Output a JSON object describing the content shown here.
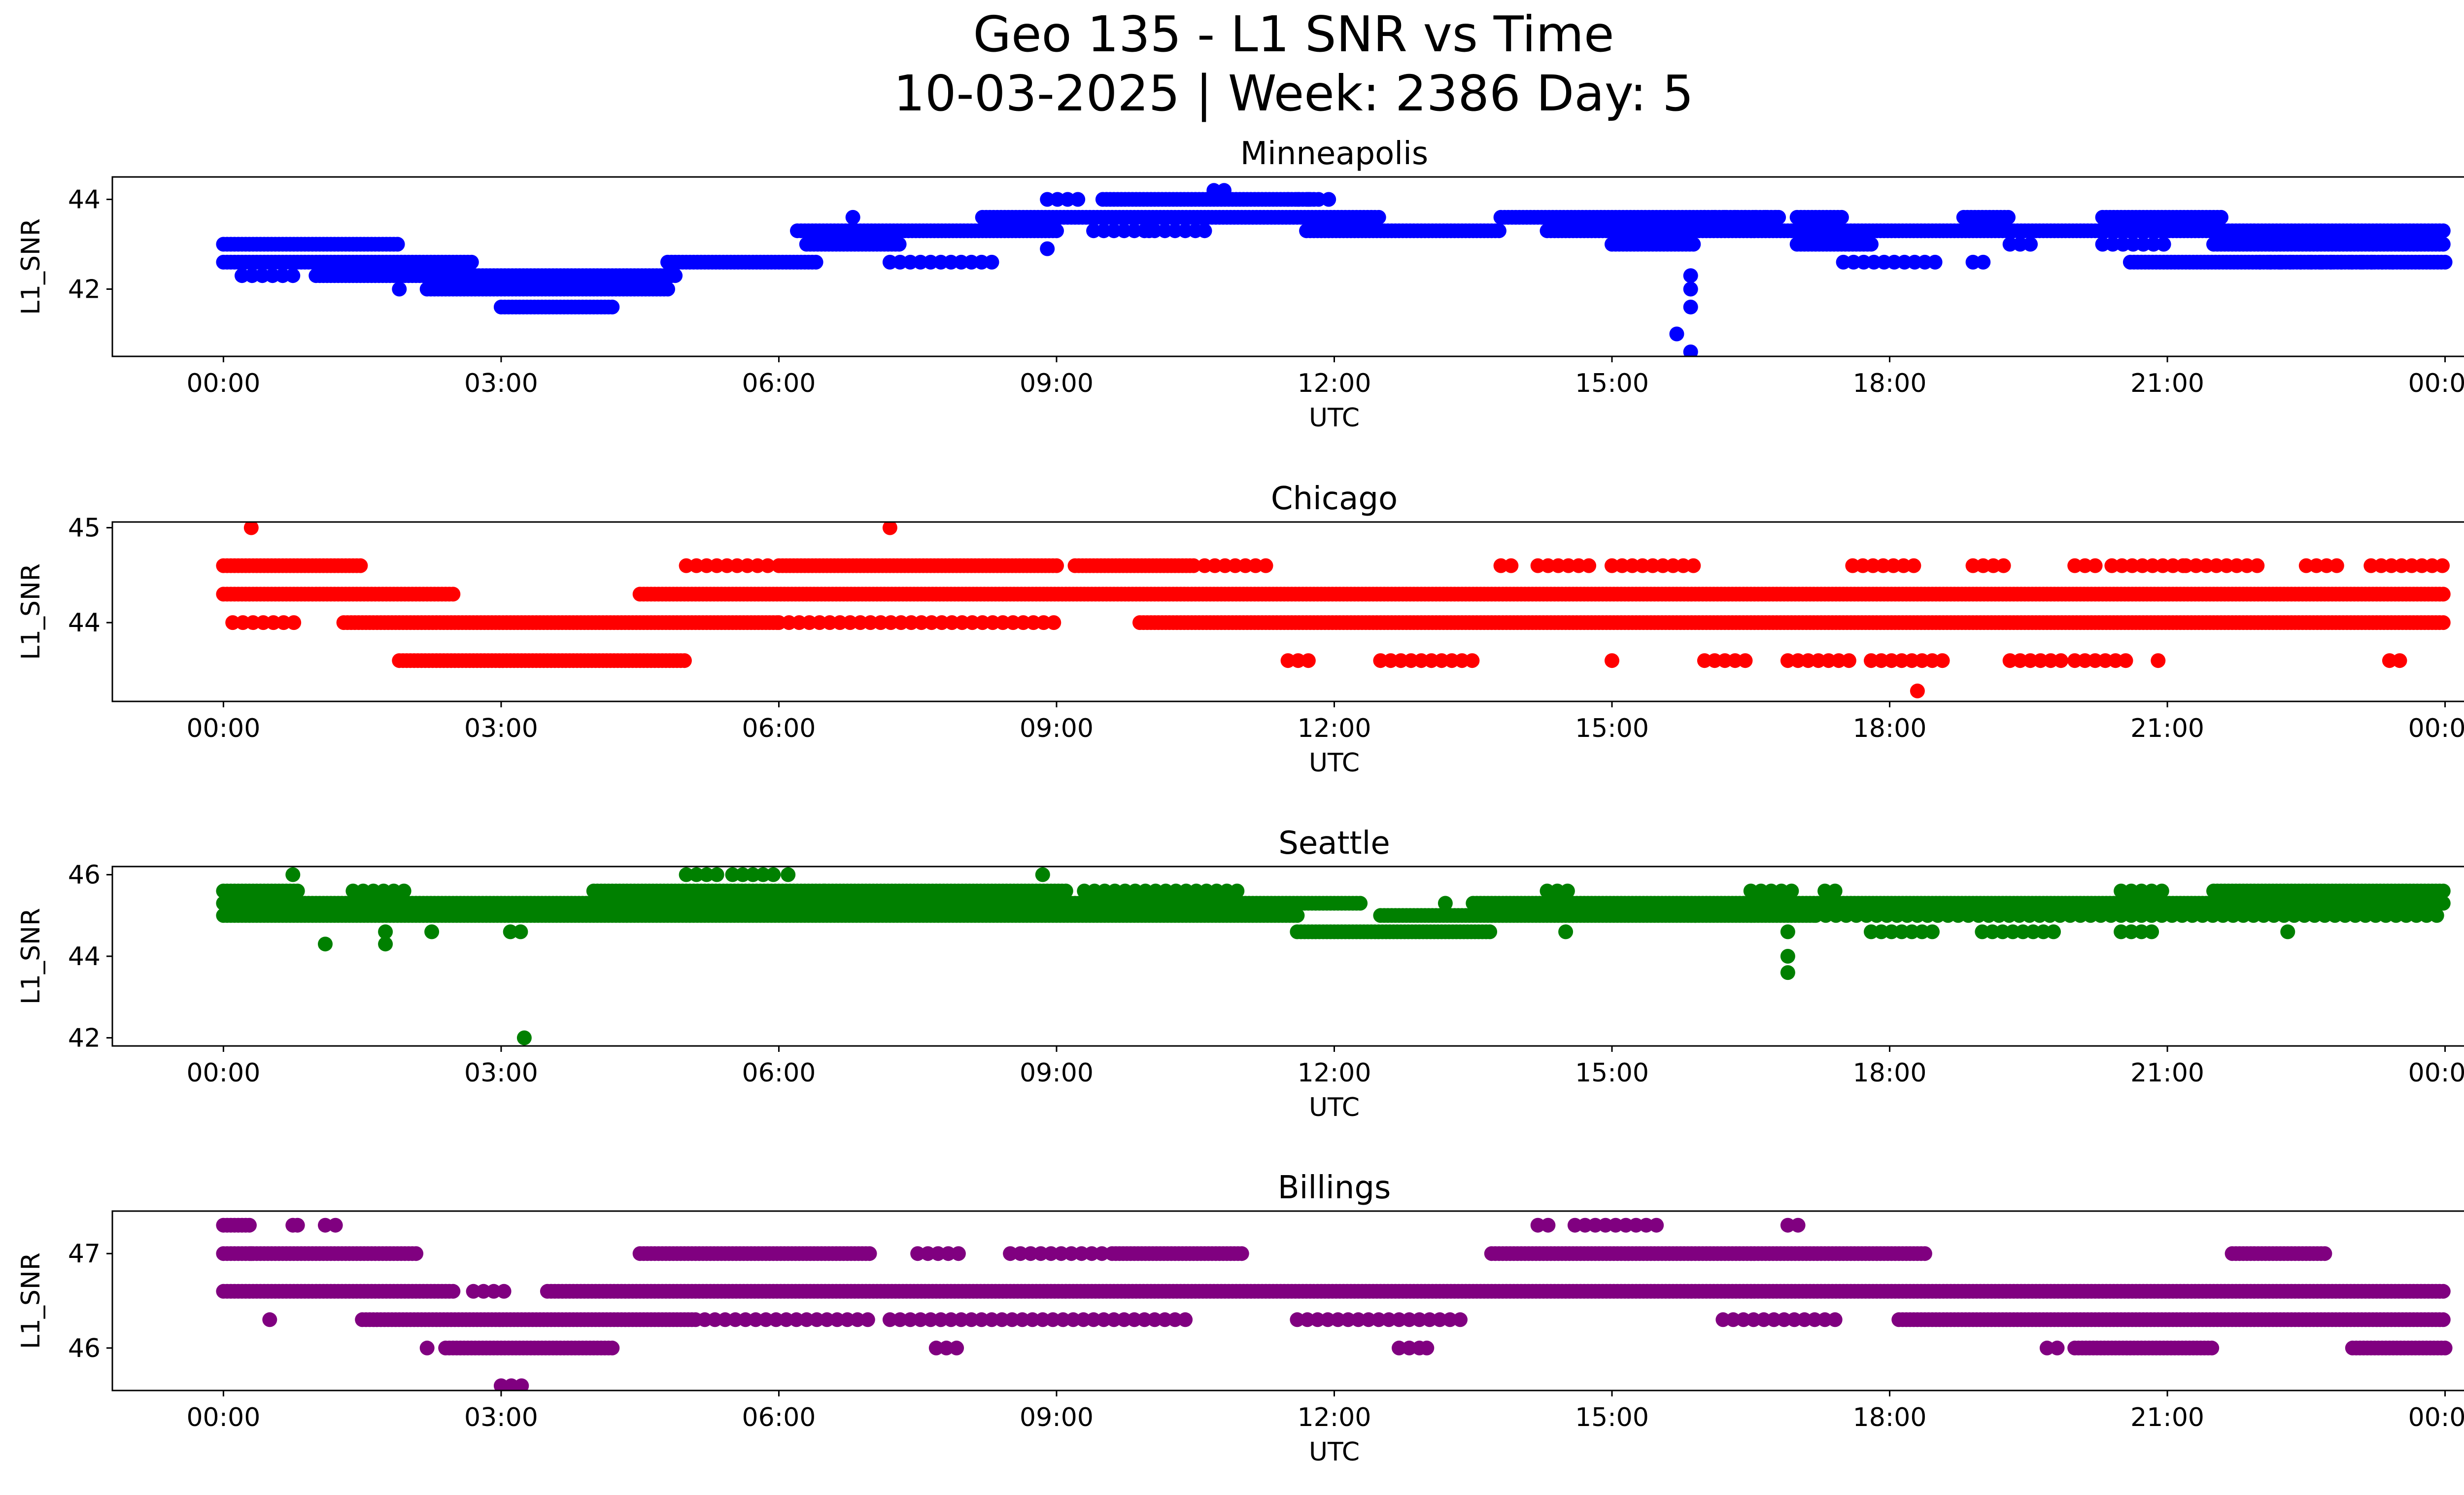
{
  "chart_data": {
    "type": "scatter",
    "title_line1": "Geo 135 - L1 SNR vs Time",
    "title_line2": "10-03-2025 | Week: 2386 Day: 5",
    "xlabel": "UTC",
    "ylabel": "L1_SNR",
    "x_unit": "hours UTC",
    "x_ticks": [
      "00:00",
      "03:00",
      "06:00",
      "09:00",
      "12:00",
      "15:00",
      "18:00",
      "21:00",
      "00:00"
    ],
    "x_tick_values": [
      0,
      3,
      6,
      9,
      12,
      15,
      18,
      21,
      24
    ],
    "xlim": [
      -1.2,
      25.2
    ],
    "panels": [
      {
        "name": "Minneapolis",
        "color": "#0000ff",
        "ylim": [
          40.5,
          44.5
        ],
        "y_ticks": [
          42,
          44
        ],
        "levels": [
          {
            "y": 43.0,
            "segments": [
              [
                0.0,
                1.9
              ],
              [
                6.3,
                7.3
              ],
              [
                15.0,
                15.9
              ],
              [
                17.0,
                17.8
              ],
              [
                21.5,
                24.0
              ]
            ],
            "sparse": [
              [
                19.3,
                19.6
              ],
              [
                20.3,
                21.0
              ]
            ]
          },
          {
            "y": 42.6,
            "segments": [
              [
                0.0,
                2.7
              ],
              [
                4.8,
                6.4
              ],
              [
                20.6,
                24.0
              ]
            ],
            "sparse": [
              [
                7.2,
                8.3
              ],
              [
                17.5,
                18.5
              ],
              [
                18.9,
                19.1
              ],
              [
                22.0,
                23.5
              ]
            ]
          },
          {
            "y": 42.3,
            "segments": [
              [
                1.0,
                4.9
              ]
            ],
            "sparse": [
              [
                0.2,
                0.8
              ]
            ]
          },
          {
            "y": 42.0,
            "segments": [
              [
                2.2,
                4.8
              ]
            ],
            "sparse": [
              [
                1.9,
                2.0
              ]
            ]
          },
          {
            "y": 41.6,
            "segments": [
              [
                3.0,
                4.2
              ]
            ],
            "sparse": []
          },
          {
            "y": 43.3,
            "segments": [
              [
                6.2,
                9.0
              ],
              [
                11.7,
                13.8
              ],
              [
                14.3,
                24.0
              ]
            ],
            "sparse": [
              [
                9.4,
                10.5
              ]
            ]
          },
          {
            "y": 43.6,
            "segments": [
              [
                8.2,
                12.5
              ],
              [
                13.8,
                16.8
              ],
              [
                17.0,
                17.5
              ],
              [
                18.8,
                19.3
              ],
              [
                20.3,
                21.6
              ]
            ],
            "sparse": [
              [
                6.8,
                6.9
              ],
              [
                16.0,
                16.8
              ]
            ]
          },
          {
            "y": 44.0,
            "segments": [
              [
                9.5,
                11.8
              ]
            ],
            "sparse": [
              [
                8.9,
                9.3
              ],
              [
                11.5,
                12.0
              ]
            ]
          },
          {
            "y": 44.2,
            "segments": [],
            "sparse": [
              [
                10.7,
                10.9
              ]
            ]
          }
        ],
        "points": [
          [
            15.7,
            41.0
          ],
          [
            15.85,
            40.6
          ],
          [
            15.85,
            41.6
          ],
          [
            15.85,
            42.0
          ],
          [
            15.85,
            42.3
          ],
          [
            8.9,
            42.9
          ],
          [
            10.0,
            43.3
          ],
          [
            10.6,
            43.3
          ]
        ]
      },
      {
        "name": "Chicago",
        "color": "#ff0000",
        "ylim": [
          43.17,
          45.06
        ],
        "y_ticks": [
          44,
          45
        ],
        "levels": [
          {
            "y": 44.3,
            "segments": [
              [
                0.0,
                2.5
              ],
              [
                4.5,
                24.0
              ]
            ],
            "sparse": []
          },
          {
            "y": 44.0,
            "segments": [
              [
                1.3,
                6.0
              ],
              [
                9.9,
                24.0
              ]
            ],
            "sparse": [
              [
                0.1,
                0.8
              ],
              [
                6.0,
                9.0
              ]
            ]
          },
          {
            "y": 43.6,
            "segments": [
              [
                1.9,
                5.0
              ]
            ],
            "sparse": [
              [
                11.5,
                11.8
              ],
              [
                12.5,
                13.5
              ],
              [
                15.0,
                15.1
              ],
              [
                16.0,
                16.5
              ],
              [
                16.9,
                17.6
              ],
              [
                17.8,
                18.6
              ],
              [
                19.3,
                19.9
              ],
              [
                20.0,
                20.6
              ],
              [
                20.9,
                21.0
              ],
              [
                23.4,
                23.6
              ]
            ]
          },
          {
            "y": 44.6,
            "segments": [
              [
                0.0,
                1.5
              ],
              [
                6.0,
                9.0
              ],
              [
                9.2,
                10.5
              ]
            ],
            "sparse": [
              [
                5.0,
                5.9
              ],
              [
                10.6,
                11.3
              ],
              [
                13.8,
                14.0
              ],
              [
                14.2,
                14.8
              ],
              [
                15.0,
                15.9
              ],
              [
                17.6,
                18.3
              ],
              [
                18.9,
                19.3
              ],
              [
                20.0,
                20.3
              ],
              [
                20.4,
                21.2
              ],
              [
                21.2,
                22.0
              ],
              [
                22.5,
                22.9
              ],
              [
                23.2,
                24.0
              ]
            ]
          }
        ],
        "points": [
          [
            0.3,
            45.0
          ],
          [
            7.2,
            45.0
          ],
          [
            18.3,
            43.28
          ]
        ]
      },
      {
        "name": "Seattle",
        "color": "#008000",
        "ylim": [
          41.8,
          46.2
        ],
        "y_ticks": [
          42,
          44,
          46
        ],
        "levels": [
          {
            "y": 45.3,
            "segments": [
              [
                0.0,
                12.3
              ],
              [
                13.5,
                24.0
              ]
            ],
            "sparse": []
          },
          {
            "y": 45.0,
            "segments": [
              [
                0.0,
                11.6
              ],
              [
                12.5,
                15.9
              ],
              [
                15.9,
                17.2
              ]
            ],
            "sparse": [
              [
                17.2,
                24.0
              ]
            ]
          },
          {
            "y": 45.6,
            "segments": [
              [
                0.0,
                0.8
              ],
              [
                4.0,
                6.5
              ],
              [
                6.5,
                9.1
              ],
              [
                21.5,
                24.0
              ]
            ],
            "sparse": [
              [
                1.4,
                2.0
              ],
              [
                9.3,
                11.0
              ],
              [
                14.3,
                14.6
              ],
              [
                16.5,
                17.0
              ],
              [
                17.3,
                17.5
              ],
              [
                20.5,
                21.0
              ]
            ]
          },
          {
            "y": 44.6,
            "segments": [
              [
                11.6,
                13.7
              ]
            ],
            "sparse": [
              [
                3.1,
                3.3
              ],
              [
                14.5,
                14.6
              ],
              [
                17.8,
                18.5
              ],
              [
                19.0,
                19.8
              ],
              [
                20.5,
                20.9
              ]
            ]
          },
          {
            "y": 46.0,
            "segments": [],
            "sparse": [
              [
                5.0,
                5.4
              ],
              [
                5.5,
                6.0
              ],
              [
                6.1,
                6.2
              ]
            ]
          }
        ],
        "points": [
          [
            0.75,
            46.0
          ],
          [
            1.1,
            44.3
          ],
          [
            1.75,
            44.6
          ],
          [
            1.75,
            44.3
          ],
          [
            2.25,
            44.6
          ],
          [
            3.25,
            42.0
          ],
          [
            8.85,
            46.0
          ],
          [
            16.9,
            44.6
          ],
          [
            16.9,
            44.0
          ],
          [
            16.9,
            43.6
          ],
          [
            22.3,
            44.6
          ],
          [
            13.2,
            45.3
          ]
        ]
      },
      {
        "name": "Billings",
        "color": "#800080",
        "ylim": [
          45.55,
          47.45
        ],
        "y_ticks": [
          46,
          47
        ],
        "levels": [
          {
            "y": 46.6,
            "segments": [
              [
                0.0,
                2.5
              ],
              [
                3.5,
                24.0
              ]
            ],
            "sparse": [
              [
                2.7,
                3.1
              ]
            ]
          },
          {
            "y": 46.3,
            "segments": [
              [
                1.5,
                5.1
              ],
              [
                18.1,
                24.0
              ]
            ],
            "sparse": [
              [
                0.5,
                0.6
              ],
              [
                5.2,
                7.0
              ],
              [
                7.2,
                10.4
              ],
              [
                11.6,
                13.4
              ],
              [
                16.2,
                17.5
              ]
            ]
          },
          {
            "y": 47.0,
            "segments": [
              [
                0.0,
                2.1
              ],
              [
                4.5,
                7.0
              ],
              [
                9.6,
                11.0
              ],
              [
                13.7,
                18.4
              ],
              [
                21.7,
                22.7
              ]
            ],
            "sparse": [
              [
                7.5,
                8.0
              ],
              [
                8.5,
                9.5
              ]
            ]
          },
          {
            "y": 46.0,
            "segments": [
              [
                2.4,
                4.2
              ],
              [
                20.0,
                21.5
              ],
              [
                23.0,
                24.0
              ]
            ],
            "sparse": [
              [
                2.2,
                2.3
              ],
              [
                7.7,
                8.0
              ],
              [
                12.7,
                13.0
              ],
              [
                19.7,
                19.9
              ]
            ]
          },
          {
            "y": 47.3,
            "segments": [
              [
                0.0,
                0.3
              ]
            ],
            "sparse": [
              [
                0.8,
                0.9
              ],
              [
                1.1,
                1.3
              ],
              [
                14.2,
                14.4
              ],
              [
                14.6,
                15.5
              ],
              [
                16.9,
                17.1
              ]
            ]
          },
          {
            "y": 45.6,
            "segments": [],
            "sparse": [
              [
                3.0,
                3.3
              ]
            ]
          }
        ],
        "points": [
          [
            0.3,
            47.0
          ],
          [
            0.75,
            47.3
          ],
          [
            13.0,
            46.0
          ]
        ]
      }
    ]
  }
}
